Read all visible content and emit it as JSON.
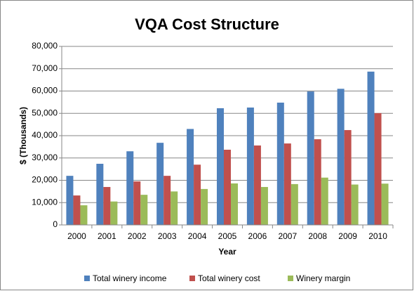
{
  "chart_data": {
    "type": "bar",
    "title": "VQA Cost Structure",
    "x_label": "Year",
    "y_label": "$ (Thousands)",
    "categories": [
      "2000",
      "2001",
      "2002",
      "2003",
      "2004",
      "2005",
      "2006",
      "2007",
      "2008",
      "2009",
      "2010"
    ],
    "series": [
      {
        "name": "Total winery income",
        "color": "#4f81bd",
        "values": [
          22000,
          27400,
          33000,
          36800,
          43000,
          52300,
          52600,
          54800,
          59800,
          61000,
          68700
        ]
      },
      {
        "name": "Total winery cost",
        "color": "#c0504d",
        "values": [
          13200,
          17000,
          19500,
          22000,
          27000,
          33700,
          35600,
          36500,
          38400,
          42500,
          50100
        ]
      },
      {
        "name": "Winery margin",
        "color": "#9bbb59",
        "values": [
          8800,
          10500,
          13500,
          15000,
          16100,
          18600,
          17000,
          18300,
          21200,
          18100,
          18500
        ]
      }
    ],
    "ylim": [
      0,
      80000
    ],
    "yticks": [
      0,
      {
        "value": 10000,
        "label": "10,000"
      },
      {
        "value": 20000,
        "label": "20,000"
      },
      {
        "value": 30000,
        "label": "30,000"
      },
      {
        "value": 40000,
        "label": "40,000"
      },
      {
        "value": 50000,
        "label": "50,000"
      },
      {
        "value": 60000,
        "label": "60,000"
      },
      {
        "value": 70000,
        "label": "70,000"
      },
      {
        "value": 80000,
        "label": "80,000"
      }
    ],
    "grid": true,
    "legend": "bottom"
  }
}
